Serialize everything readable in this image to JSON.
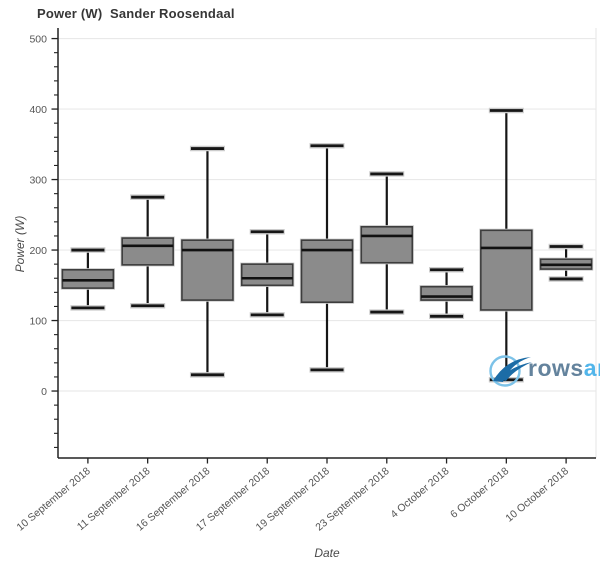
{
  "title": "Power (W)  Sander Roosendaal",
  "axes": {
    "x_title": "Date",
    "y_title": "Power (W)"
  },
  "watermark": {
    "text_primary": "rows",
    "text_secondary": "andall",
    "circle_color": "#7cc2e8",
    "swoosh_color": "#1c6ca6"
  },
  "colors": {
    "box_fill": "#8b8b8b",
    "box_border": "#3d3d3d",
    "median": "#111111",
    "whisker": "#161616",
    "cap_glow": "#cccccc",
    "gridline": "#e9e9e9",
    "spine": "#222222",
    "tick_label": "#555555"
  },
  "chart_data": {
    "type": "boxplot",
    "title": "Power (W)  Sander Roosendaal",
    "xlabel": "Date",
    "ylabel": "Power (W)",
    "ylim": [
      -95,
      515
    ],
    "yticks_major": [
      0,
      100,
      200,
      300,
      400,
      500
    ],
    "ytick_minor_step": 20,
    "grid": "horizontal major gridlines, light gray; white background",
    "legend": "none",
    "categories": [
      "10 September 2018",
      "11 September 2018",
      "16 September 2018",
      "17 September 2018",
      "19 September 2018",
      "23 September 2018",
      "4 October 2018",
      "6 October 2018",
      "10 October 2018"
    ],
    "boxes": [
      {
        "min": 118,
        "q1": 146,
        "median": 157,
        "q3": 172,
        "max": 200
      },
      {
        "min": 121,
        "q1": 179,
        "median": 206,
        "q3": 217,
        "max": 275
      },
      {
        "min": 23,
        "q1": 129,
        "median": 200,
        "q3": 214,
        "max": 344
      },
      {
        "min": 108,
        "q1": 150,
        "median": 160,
        "q3": 180,
        "max": 226
      },
      {
        "min": 30,
        "q1": 126,
        "median": 200,
        "q3": 214,
        "max": 348
      },
      {
        "min": 112,
        "q1": 182,
        "median": 220,
        "q3": 233,
        "max": 308
      },
      {
        "min": 106,
        "q1": 129,
        "median": 134,
        "q3": 148,
        "max": 172
      },
      {
        "min": 16,
        "q1": 115,
        "median": 203,
        "q3": 228,
        "max": 398
      },
      {
        "min": 159,
        "q1": 173,
        "median": 179,
        "q3": 187,
        "max": 205
      }
    ]
  }
}
